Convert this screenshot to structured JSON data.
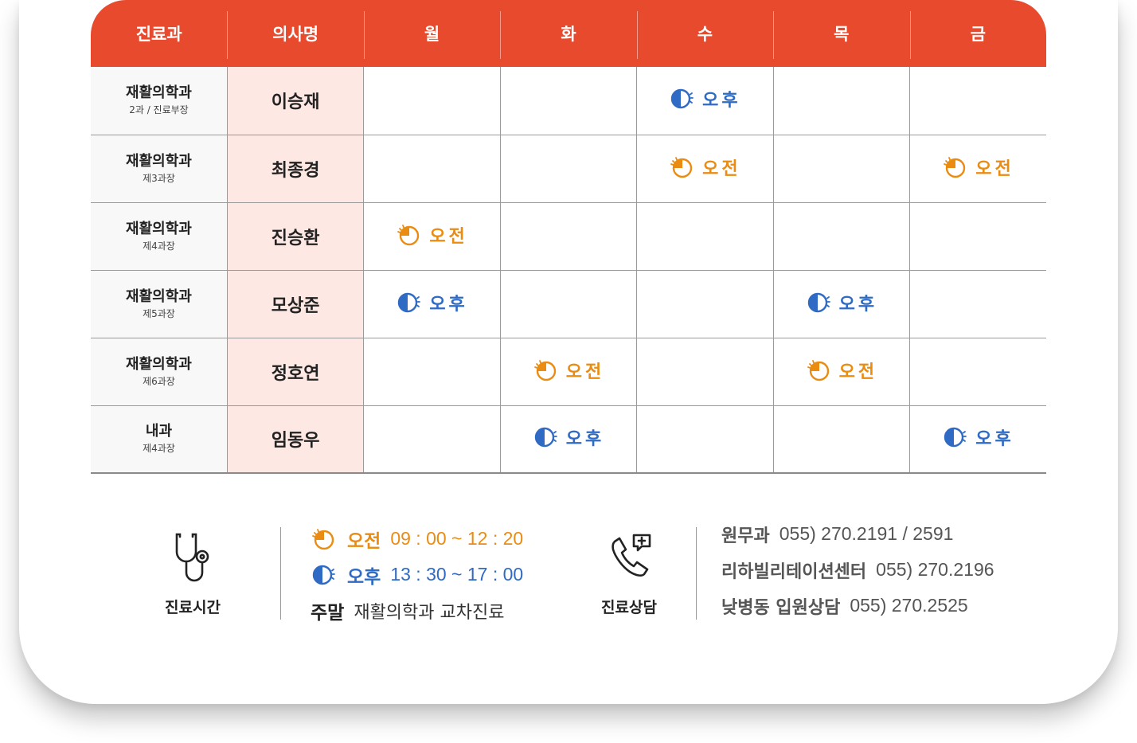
{
  "colors": {
    "header_bg": "#e84a2e",
    "doctor_bg": "#fde8e3",
    "am": "#ea8c12",
    "pm": "#2f6bc4"
  },
  "table": {
    "headers": [
      "진료과",
      "의사명",
      "월",
      "화",
      "수",
      "목",
      "금"
    ],
    "rows": [
      {
        "dept": "재활의학과",
        "sub": "2과 / 진료부장",
        "doctor": "이승재",
        "slots": [
          "",
          "",
          "오후",
          "",
          ""
        ]
      },
      {
        "dept": "재활의학과",
        "sub": "제3과장",
        "doctor": "최종경",
        "slots": [
          "",
          "",
          "오전",
          "",
          "오전"
        ]
      },
      {
        "dept": "재활의학과",
        "sub": "제4과장",
        "doctor": "진승환",
        "slots": [
          "오전",
          "",
          "",
          "",
          ""
        ]
      },
      {
        "dept": "재활의학과",
        "sub": "제5과장",
        "doctor": "모상준",
        "slots": [
          "오후",
          "",
          "",
          "오후",
          ""
        ]
      },
      {
        "dept": "재활의학과",
        "sub": "제6과장",
        "doctor": "정호연",
        "slots": [
          "",
          "오전",
          "",
          "오전",
          ""
        ]
      },
      {
        "dept": "내과",
        "sub": "제4과장",
        "doctor": "임동우",
        "slots": [
          "",
          "오후",
          "",
          "",
          "오후"
        ]
      }
    ]
  },
  "hours": {
    "icon": "stethoscope-icon",
    "label": "진료시간",
    "am_label": "오전",
    "am_time": "09 : 00 ~ 12 : 20",
    "pm_label": "오후",
    "pm_time": "13 : 30 ~ 17 : 00",
    "weekend_label": "주말",
    "weekend_text": "재활의학과 교차진료"
  },
  "consult": {
    "icon": "phone-chat-icon",
    "label": "진료상담",
    "contacts": [
      {
        "name": "원무과",
        "number": "055) 270.2191 / 2591"
      },
      {
        "name": "리하빌리테이션센터",
        "number": "055) 270.2196"
      },
      {
        "name": "낮병동 입원상담",
        "number": "055) 270.2525"
      }
    ]
  }
}
